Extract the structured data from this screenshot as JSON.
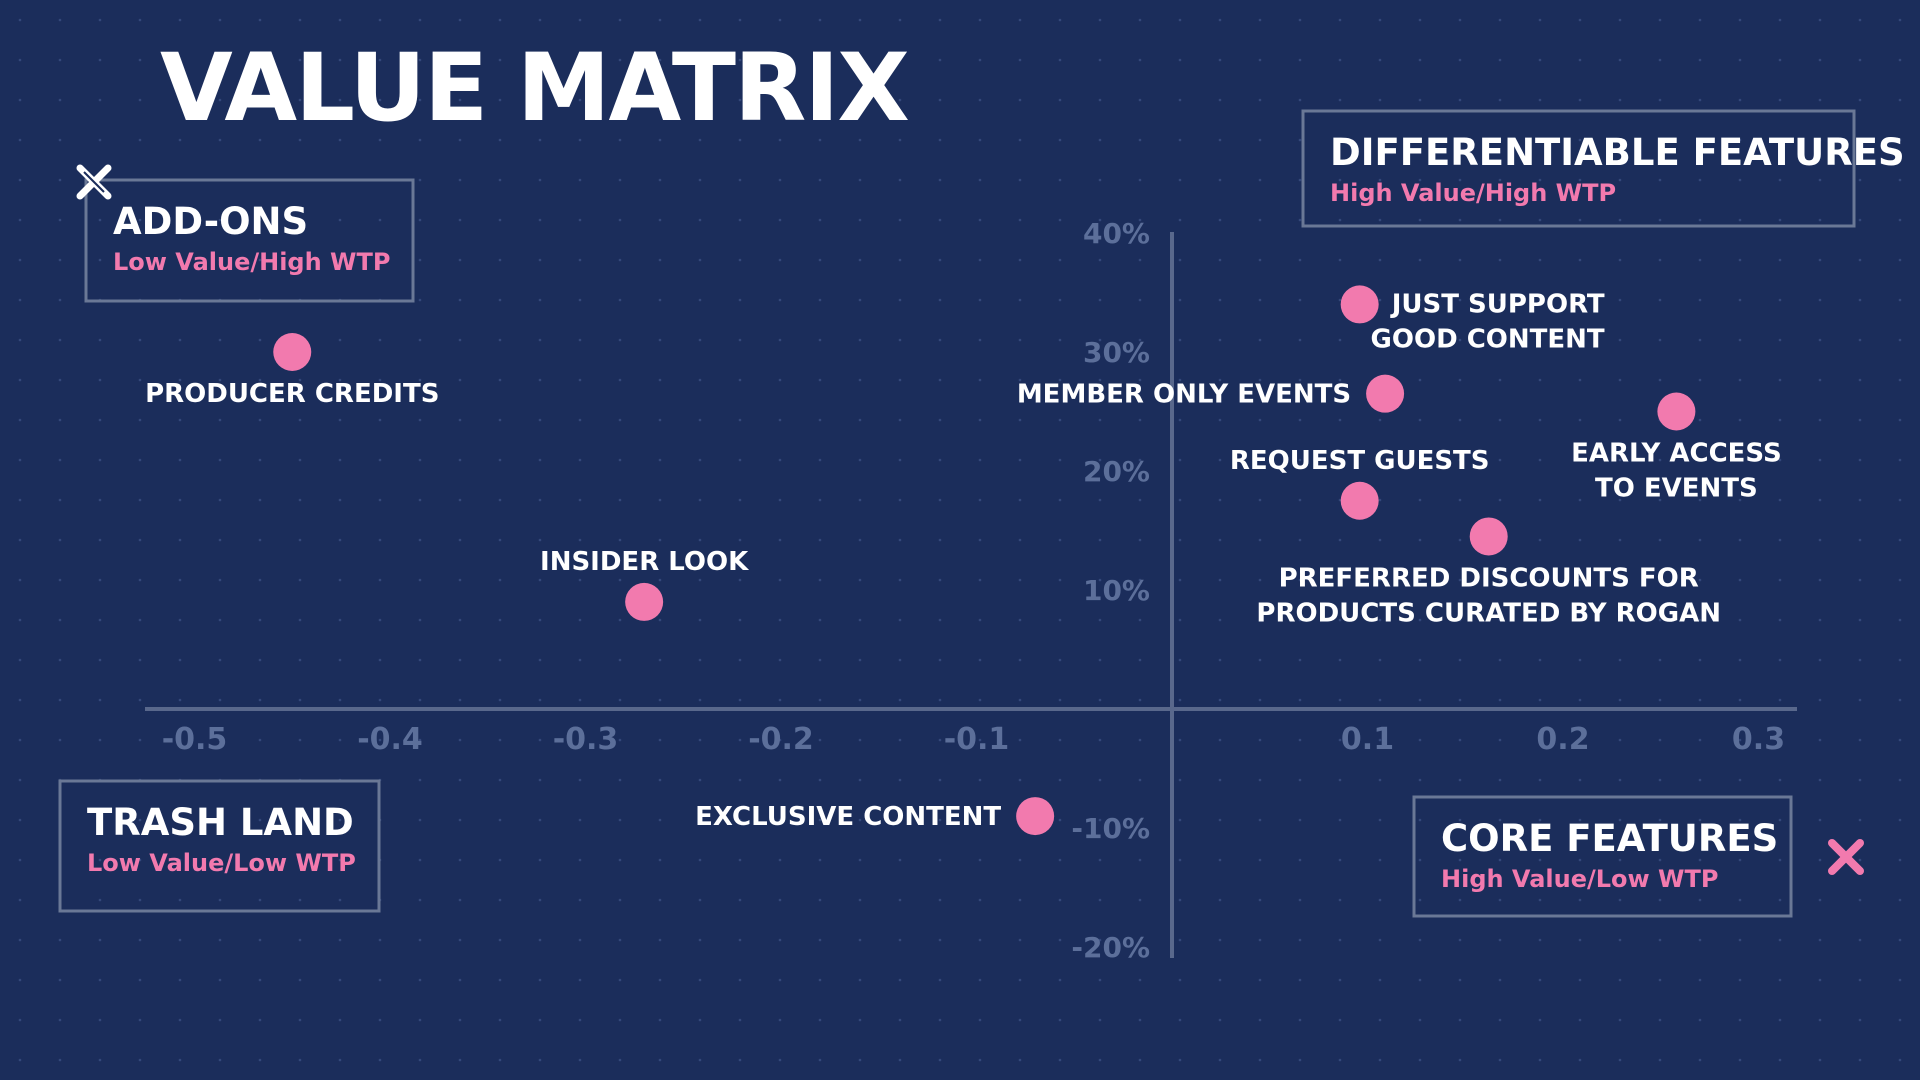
{
  "colors": {
    "background": "#1b2d5b",
    "axis": "#59688c",
    "point": "#f27aae",
    "box_border": "#6a7896",
    "subtitle": "#f27aae",
    "x_mark_white": "#ffffff",
    "x_mark_pink": "#f27aae"
  },
  "icons": {
    "top_left_marker": "x-mark-icon",
    "bottom_right_marker": "x-mark-icon"
  },
  "chart_data": {
    "type": "scatter",
    "title": "VALUE MATRIX",
    "xlabel": "",
    "ylabel": "",
    "xlim": [
      -0.55,
      0.36
    ],
    "ylim": [
      -21,
      40
    ],
    "grid": false,
    "x_ticks": [
      -0.5,
      -0.4,
      -0.3,
      -0.2,
      -0.1,
      0.1,
      0.2,
      0.3
    ],
    "x_tick_labels": [
      "-0.5",
      "-0.4",
      "-0.3",
      "-0.2",
      "-0.1",
      "0.1",
      "0.2",
      "0.3"
    ],
    "y_ticks": [
      40,
      30,
      20,
      10,
      -10,
      -20
    ],
    "y_tick_labels": [
      "40%",
      "30%",
      "20%",
      "10%",
      "-10%",
      "-20%"
    ],
    "quadrants": [
      {
        "title": "DIFFERENTIABLE FEATURES",
        "subtitle": "High Value/High WTP",
        "placement": "top-right"
      },
      {
        "title": "ADD-ONS",
        "subtitle": "Low Value/High WTP",
        "placement": "top-left"
      },
      {
        "title": "TRASH LAND",
        "subtitle": "Low Value/Low WTP",
        "placement": "bottom-left"
      },
      {
        "title": "CORE FEATURES",
        "subtitle": "High Value/Low WTP",
        "placement": "bottom-right"
      }
    ],
    "points": [
      {
        "label": [
          "PRODUCER CREDITS"
        ],
        "x": -0.45,
        "y": 30,
        "label_pos": "below"
      },
      {
        "label": [
          "INSIDER LOOK"
        ],
        "x": -0.27,
        "y": 9,
        "label_pos": "above"
      },
      {
        "label": [
          "EXCLUSIVE CONTENT"
        ],
        "x": -0.07,
        "y": -9,
        "label_pos": "left"
      },
      {
        "label": [
          "JUST SUPPORT",
          "GOOD CONTENT"
        ],
        "x": 0.096,
        "y": 34,
        "label_pos": "right-below"
      },
      {
        "label": [
          "MEMBER ONLY EVENTS"
        ],
        "x": 0.109,
        "y": 26.5,
        "label_pos": "left"
      },
      {
        "label": [
          "EARLY ACCESS",
          "TO EVENTS"
        ],
        "x": 0.258,
        "y": 25,
        "label_pos": "below"
      },
      {
        "label": [
          "REQUEST GUESTS"
        ],
        "x": 0.096,
        "y": 17.5,
        "label_pos": "above"
      },
      {
        "label": [
          "PREFERRED DISCOUNTS FOR",
          "PRODUCTS CURATED BY ROGAN"
        ],
        "x": 0.162,
        "y": 14.5,
        "label_pos": "below"
      }
    ]
  }
}
